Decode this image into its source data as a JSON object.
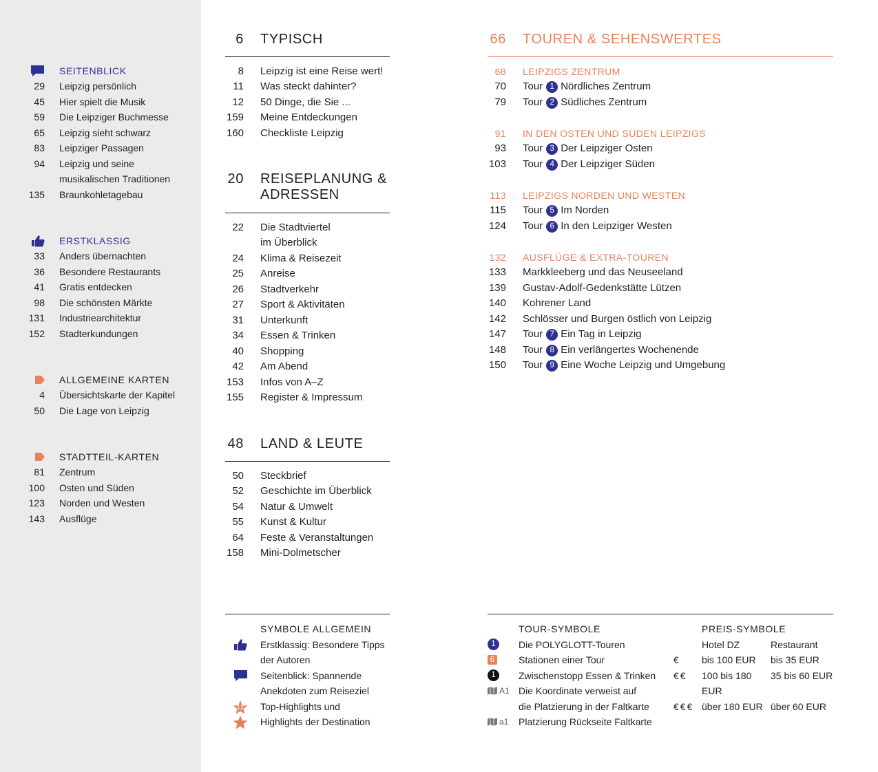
{
  "sidebar": {
    "sections": [
      {
        "title": "SEITENBLICK",
        "entries": [
          {
            "page": 29,
            "text": "Leipzig persönlich"
          },
          {
            "page": 45,
            "text": "Hier spielt die Musik"
          },
          {
            "page": 59,
            "text": "Die Leipziger Buchmesse"
          },
          {
            "page": 65,
            "text": "Leipzig sieht schwarz"
          },
          {
            "page": 83,
            "text": "Leipziger Passagen"
          },
          {
            "page": 94,
            "text": "Leipzig und seine\nmusikalischen Traditionen"
          },
          {
            "page": 135,
            "text": "Braunkohletagebau"
          }
        ]
      },
      {
        "title": "ERSTKLASSIG",
        "entries": [
          {
            "page": 33,
            "text": "Anders übernachten"
          },
          {
            "page": 36,
            "text": "Besondere Restaurants"
          },
          {
            "page": 41,
            "text": "Gratis entdecken"
          },
          {
            "page": 98,
            "text": "Die schönsten Märkte"
          },
          {
            "page": 131,
            "text": "Industriearchitektur"
          },
          {
            "page": 152,
            "text": "Stadterkundungen"
          }
        ]
      },
      {
        "title": "ALLGEMEINE KARTEN",
        "entries": [
          {
            "page": 4,
            "text": "Übersichtskarte der Kapitel"
          },
          {
            "page": 50,
            "text": "Die Lage von Leipzig"
          }
        ]
      },
      {
        "title": "STADTTEIL-KARTEN",
        "entries": [
          {
            "page": 81,
            "text": "Zentrum"
          },
          {
            "page": 100,
            "text": "Osten und Süden"
          },
          {
            "page": 123,
            "text": "Norden und Westen"
          },
          {
            "page": 143,
            "text": "Ausflüge"
          }
        ]
      }
    ]
  },
  "chapters": [
    {
      "page": 6,
      "title": "TYPISCH",
      "entries": [
        {
          "page": 8,
          "text": "Leipzig ist eine Reise wert!"
        },
        {
          "page": 11,
          "text": "Was steckt dahinter?"
        },
        {
          "page": 12,
          "text": "50 Dinge, die Sie ..."
        },
        {
          "page": 159,
          "text": "Meine Entdeckungen"
        },
        {
          "page": 160,
          "text": "Checkliste Leipzig"
        }
      ]
    },
    {
      "page": 20,
      "title": "REISEPLANUNG &\nADRESSEN",
      "entries": [
        {
          "page": 22,
          "text": "Die Stadtviertel\nim Überblick"
        },
        {
          "page": 24,
          "text": "Klima & Reisezeit"
        },
        {
          "page": 25,
          "text": "Anreise"
        },
        {
          "page": 26,
          "text": "Stadtverkehr"
        },
        {
          "page": 27,
          "text": "Sport & Aktivitäten"
        },
        {
          "page": 31,
          "text": "Unterkunft"
        },
        {
          "page": 34,
          "text": "Essen & Trinken"
        },
        {
          "page": 40,
          "text": "Shopping"
        },
        {
          "page": 42,
          "text": "Am Abend"
        },
        {
          "page": 153,
          "text": "Infos von A–Z"
        },
        {
          "page": 155,
          "text": "Register & Impressum"
        }
      ]
    },
    {
      "page": 48,
      "title": "LAND & LEUTE",
      "entries": [
        {
          "page": 50,
          "text": "Steckbrief"
        },
        {
          "page": 52,
          "text": "Geschichte im Überblick"
        },
        {
          "page": 54,
          "text": "Natur & Umwelt"
        },
        {
          "page": 55,
          "text": "Kunst & Kultur"
        },
        {
          "page": 64,
          "text": "Feste & Veranstaltungen"
        },
        {
          "page": 158,
          "text": "Mini-Dolmetscher"
        }
      ]
    }
  ],
  "tours": {
    "page": 66,
    "title": "TOUREN & SEHENSWERTES",
    "sections": [
      {
        "page": 68,
        "title": "LEIPZIGS ZENTRUM",
        "entries": [
          {
            "page": 70,
            "label": "Tour",
            "badge": 1,
            "text": "Nördliches Zentrum"
          },
          {
            "page": 79,
            "label": "Tour",
            "badge": 2,
            "text": "Südliches Zentrum"
          }
        ]
      },
      {
        "page": 91,
        "title": "IN DEN OSTEN UND SÜDEN LEIPZIGS",
        "entries": [
          {
            "page": 93,
            "label": "Tour",
            "badge": 3,
            "text": "Der Leipziger Osten"
          },
          {
            "page": 103,
            "label": "Tour",
            "badge": 4,
            "text": "Der Leipziger Süden"
          }
        ]
      },
      {
        "page": 113,
        "title": "LEIPZIGS NORDEN UND WESTEN",
        "entries": [
          {
            "page": 115,
            "label": "Tour",
            "badge": 5,
            "text": "Im Norden"
          },
          {
            "page": 124,
            "label": "Tour",
            "badge": 6,
            "text": "In den Leipziger Westen"
          }
        ]
      },
      {
        "page": 132,
        "title": "AUSFLÜGE & EXTRA-TOUREN",
        "entries": [
          {
            "page": 133,
            "text": "Markkleeberg und das Neuseeland"
          },
          {
            "page": 139,
            "text": "Gustav-Adolf-Gedenkstätte Lützen"
          },
          {
            "page": 140,
            "text": "Kohrener Land"
          },
          {
            "page": 142,
            "text": "Schlösser und Burgen östlich von Leipzig"
          },
          {
            "page": 147,
            "label": "Tour",
            "badge": 7,
            "text": "Ein Tag in Leipzig"
          },
          {
            "page": 148,
            "label": "Tour",
            "badge": 8,
            "text": "Ein verlängertes Wochenende"
          },
          {
            "page": 150,
            "label": "Tour",
            "badge": 9,
            "text": "Eine Woche Leipzig und Umgebung"
          }
        ]
      }
    ]
  },
  "legend": {
    "general": {
      "title": "SYMBOLE ALLGEMEIN",
      "items": [
        {
          "text": "Erstklassig: Besondere Tipps\nder Autoren"
        },
        {
          "text": "Seitenblick: Spannende\nAnekdoten zum Reiseziel"
        },
        {
          "icon_label": 12,
          "text": "Top-Highlights und"
        },
        {
          "text": "Highlights der Destination"
        }
      ]
    },
    "tour": {
      "title": "TOUR-SYMBOLE",
      "items": [
        {
          "icon_label": 1,
          "text": "Die POLYGLOTT-Touren"
        },
        {
          "icon_label": 6,
          "text": "Stationen einer Tour"
        },
        {
          "icon_label": 1,
          "text": "Zwischenstopp Essen & Trinken"
        },
        {
          "icon_label": "A1",
          "text": "Die Koordinate verweist auf\ndie Platzierung in der Faltkarte"
        },
        {
          "icon_label": "a1",
          "text": "Platzierung Rückseite Faltkarte"
        }
      ]
    },
    "price": {
      "title": "PREIS-SYMBOLE",
      "columns": [
        "Hotel DZ",
        "Restaurant"
      ],
      "rows": [
        {
          "symbol": "€",
          "hotel": "bis 100 EUR",
          "restaurant": "bis 35 EUR"
        },
        {
          "symbol": "€€",
          "hotel": "100 bis 180 EUR",
          "restaurant": "35 bis 60 EUR"
        },
        {
          "symbol": "€€€",
          "hotel": "über 180 EUR",
          "restaurant": "über 60 EUR"
        }
      ]
    }
  }
}
